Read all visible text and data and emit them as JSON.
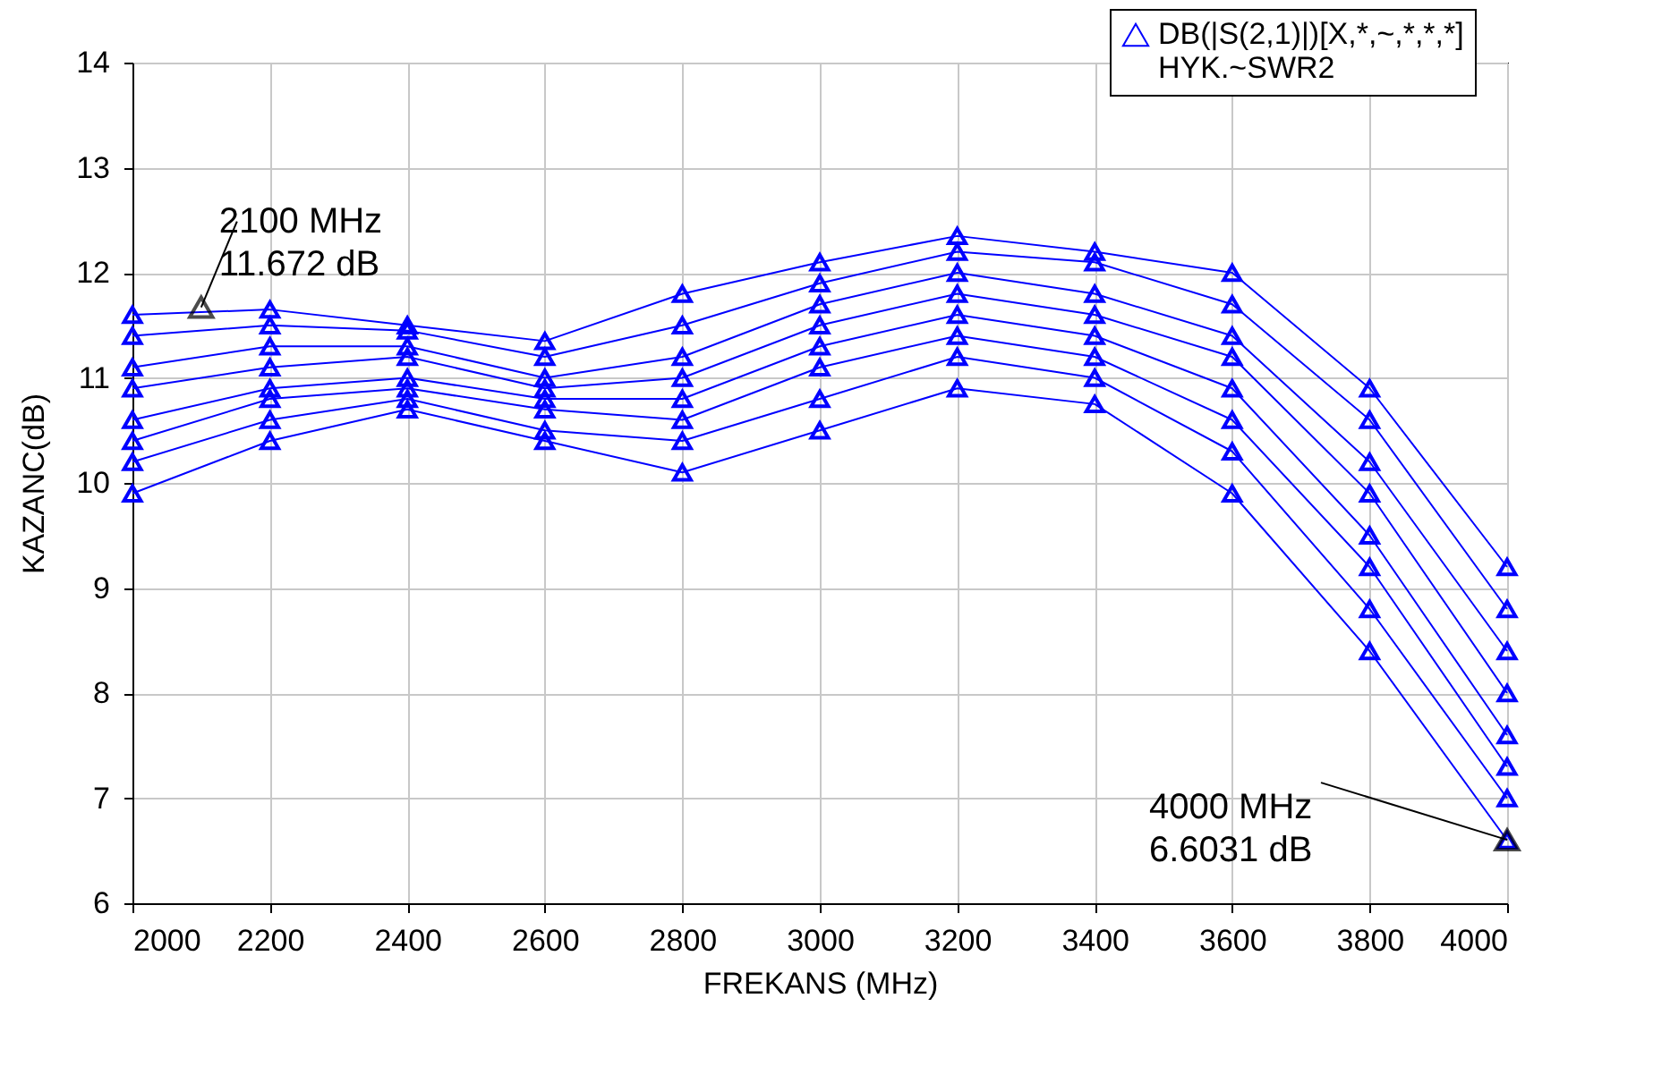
{
  "chart_data": {
    "type": "line",
    "xlabel": "FREKANS (MHz)",
    "ylabel": "KAZANC(dB)",
    "x": [
      2000,
      2200,
      2400,
      2600,
      2800,
      3000,
      3200,
      3400,
      3600,
      3800,
      4000
    ],
    "xlim": [
      2000,
      4000
    ],
    "xticks": [
      2000,
      2200,
      2400,
      2600,
      2800,
      3000,
      3200,
      3400,
      3600,
      3800,
      4000
    ],
    "ylim": [
      6,
      14
    ],
    "yticks": [
      6,
      7,
      8,
      9,
      10,
      11,
      12,
      13,
      14
    ],
    "grid": true,
    "legend": "top right",
    "marker": "triangle",
    "line_style": "solid",
    "series": [
      {
        "name": "DB(|S(2,1)|)[X,*,~,*,*,*]\nHYK.~SWR2",
        "color": "#0000ff",
        "values": [
          11.6,
          11.65,
          11.5,
          11.35,
          11.8,
          12.1,
          12.35,
          12.2,
          12.0,
          10.9,
          9.2
        ]
      },
      {
        "color": "#0000ff",
        "values": [
          11.4,
          11.5,
          11.45,
          11.2,
          11.5,
          11.9,
          12.2,
          12.1,
          11.7,
          10.6,
          8.8
        ]
      },
      {
        "color": "#0000ff",
        "values": [
          11.1,
          11.3,
          11.3,
          11.0,
          11.2,
          11.7,
          12.0,
          11.8,
          11.4,
          10.2,
          8.4
        ]
      },
      {
        "color": "#0000ff",
        "values": [
          10.9,
          11.1,
          11.2,
          10.9,
          11.0,
          11.5,
          11.8,
          11.6,
          11.2,
          9.9,
          8.0
        ]
      },
      {
        "color": "#0000ff",
        "values": [
          10.6,
          10.9,
          11.0,
          10.8,
          10.8,
          11.3,
          11.6,
          11.4,
          10.9,
          9.5,
          7.6
        ]
      },
      {
        "color": "#0000ff",
        "values": [
          10.4,
          10.8,
          10.9,
          10.7,
          10.6,
          11.1,
          11.4,
          11.2,
          10.6,
          9.2,
          7.3
        ]
      },
      {
        "color": "#0000ff",
        "values": [
          10.2,
          10.6,
          10.8,
          10.5,
          10.4,
          10.8,
          11.2,
          11.0,
          10.3,
          8.8,
          7.0
        ]
      },
      {
        "color": "#0000ff",
        "values": [
          9.9,
          10.4,
          10.7,
          10.4,
          10.1,
          10.5,
          10.9,
          10.75,
          9.9,
          8.4,
          6.6
        ]
      }
    ],
    "annotations": [
      {
        "text": "2100 MHz\n11.672 dB",
        "x": 2100,
        "y": 11.672
      },
      {
        "text": "4000 MHz\n6.6031 dB",
        "x": 4000,
        "y": 6.6031
      }
    ]
  }
}
